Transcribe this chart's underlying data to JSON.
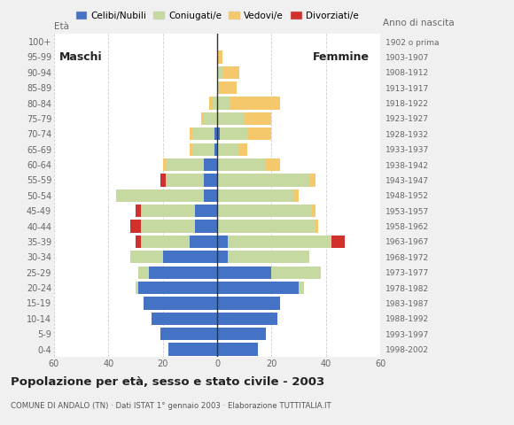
{
  "age_groups": [
    "0-4",
    "5-9",
    "10-14",
    "15-19",
    "20-24",
    "25-29",
    "30-34",
    "35-39",
    "40-44",
    "45-49",
    "50-54",
    "55-59",
    "60-64",
    "65-69",
    "70-74",
    "75-79",
    "80-84",
    "85-89",
    "90-94",
    "95-99",
    "100+"
  ],
  "birth_years": [
    "1998-2002",
    "1993-1997",
    "1988-1992",
    "1983-1987",
    "1978-1982",
    "1973-1977",
    "1968-1972",
    "1963-1967",
    "1958-1962",
    "1953-1957",
    "1948-1952",
    "1943-1947",
    "1938-1942",
    "1933-1937",
    "1928-1932",
    "1923-1927",
    "1918-1922",
    "1913-1917",
    "1908-1912",
    "1903-1907",
    "1902 o prima"
  ],
  "male": {
    "celibe": [
      18,
      21,
      24,
      27,
      29,
      25,
      20,
      10,
      8,
      8,
      5,
      5,
      5,
      1,
      1,
      0,
      0,
      0,
      0,
      0,
      0
    ],
    "coniugato": [
      0,
      0,
      0,
      0,
      1,
      4,
      12,
      18,
      20,
      20,
      32,
      14,
      14,
      8,
      8,
      5,
      2,
      0,
      0,
      0,
      0
    ],
    "vedovo": [
      0,
      0,
      0,
      0,
      0,
      0,
      0,
      0,
      0,
      0,
      0,
      0,
      1,
      1,
      1,
      1,
      1,
      0,
      0,
      0,
      0
    ],
    "divorziato": [
      0,
      0,
      0,
      0,
      0,
      0,
      0,
      2,
      4,
      2,
      0,
      2,
      0,
      0,
      0,
      0,
      0,
      0,
      0,
      0,
      0
    ]
  },
  "female": {
    "nubile": [
      15,
      18,
      22,
      23,
      30,
      20,
      4,
      4,
      0,
      0,
      0,
      0,
      0,
      0,
      1,
      0,
      0,
      0,
      0,
      0,
      0
    ],
    "coniugata": [
      0,
      0,
      0,
      0,
      2,
      18,
      30,
      38,
      36,
      35,
      28,
      34,
      18,
      8,
      10,
      10,
      5,
      1,
      2,
      0,
      0
    ],
    "vedova": [
      0,
      0,
      0,
      0,
      0,
      0,
      0,
      0,
      1,
      1,
      2,
      2,
      5,
      3,
      9,
      10,
      18,
      6,
      6,
      2,
      0
    ],
    "divorziata": [
      0,
      0,
      0,
      0,
      0,
      0,
      0,
      5,
      0,
      0,
      0,
      0,
      0,
      0,
      0,
      0,
      0,
      0,
      0,
      0,
      0
    ]
  },
  "colors": {
    "celibe": "#4472c4",
    "coniugato": "#c5d9a0",
    "vedovo": "#f5c96b",
    "divorziato": "#d0312d"
  },
  "legend_labels": [
    "Celibi/Nubili",
    "Coniugati/e",
    "Vedovi/e",
    "Divorziati/e"
  ],
  "title": "Popolazione per età, sesso e stato civile - 2003",
  "subtitle": "COMUNE DI ANDALO (TN) · Dati ISTAT 1° gennaio 2003 · Elaborazione TUTTITALIA.IT",
  "xlim": 60,
  "xlabel_left": "Maschi",
  "xlabel_right": "Femmine",
  "ylabel_left": "Età",
  "ylabel_right": "Anno di nascita",
  "bg_color": "#f0f0f0",
  "plot_bg": "#ffffff"
}
